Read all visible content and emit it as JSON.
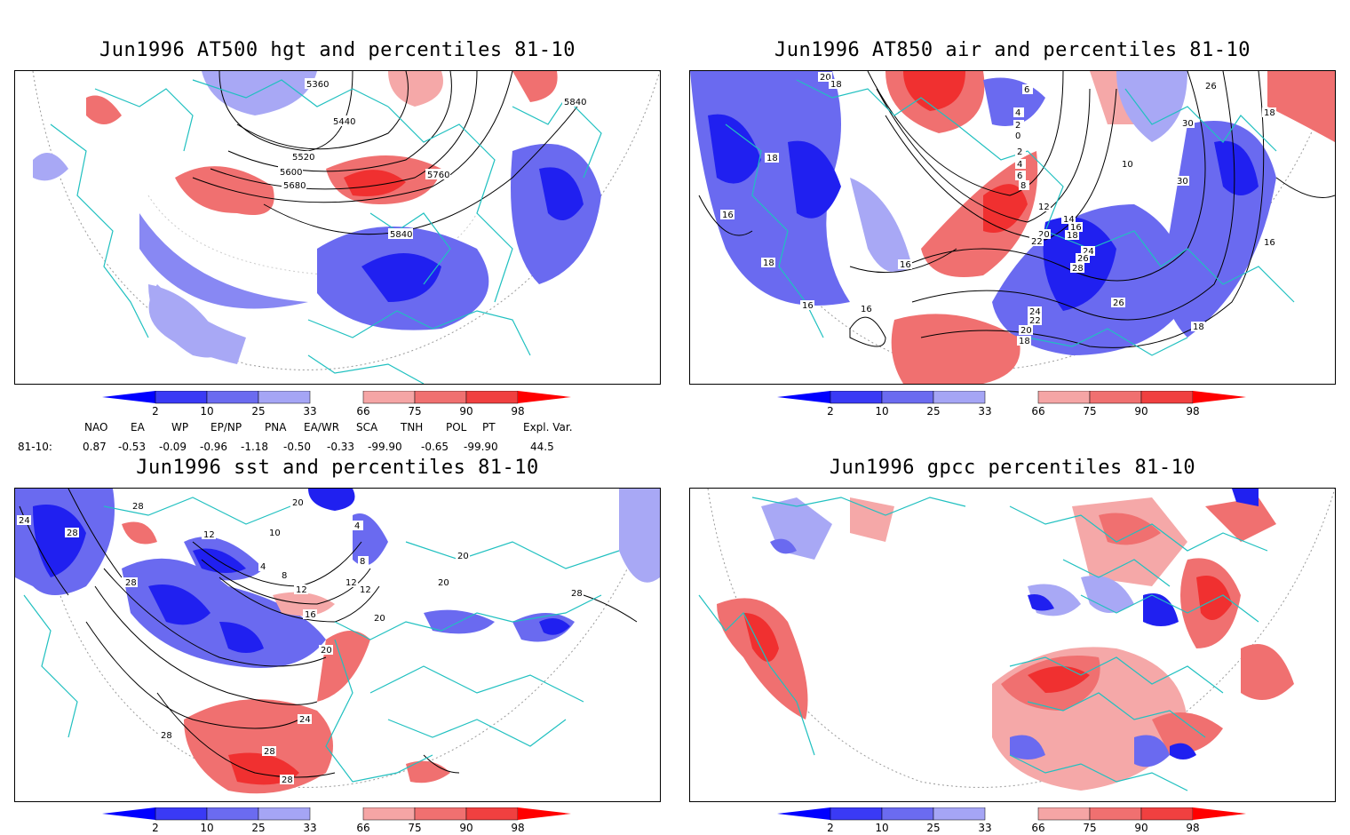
{
  "panels": [
    {
      "title": "Jun1996 AT500 hgt and percentiles 81-10",
      "contour_labels": [
        "5360",
        "5440",
        "5520",
        "5600",
        "5680",
        "5760",
        "5840",
        "5840"
      ]
    },
    {
      "title": "Jun1996 AT850 air and percentiles 81-10",
      "contour_labels": [
        "20",
        "18",
        "6",
        "4",
        "2",
        "0",
        "2",
        "4",
        "6",
        "8",
        "12",
        "14",
        "16",
        "18",
        "20",
        "22",
        "24",
        "26",
        "28",
        "26",
        "24",
        "22",
        "20",
        "18",
        "16",
        "16",
        "16",
        "18",
        "18",
        "16",
        "26",
        "30",
        "30",
        "10",
        "18",
        "18",
        "16"
      ]
    },
    {
      "title": "Jun1996 sst and percentiles 81-10",
      "contour_labels": [
        "24",
        "28",
        "28",
        "20",
        "10",
        "12",
        "4",
        "8",
        "12",
        "16",
        "20",
        "24",
        "28",
        "28",
        "28",
        "28",
        "20",
        "20",
        "12",
        "12",
        "4",
        "8",
        "28",
        "20"
      ]
    },
    {
      "title": "Jun1996 gpcc percentiles 81-10",
      "contour_labels": []
    }
  ],
  "colorbar": {
    "ticks": [
      "2",
      "10",
      "25",
      "33",
      "66",
      "75",
      "90",
      "98"
    ],
    "colors": [
      "#0000ff",
      "#3a3af5",
      "#6b6bf0",
      "#a5a5f5",
      "#ffffff",
      "#f5a5a5",
      "#f07070",
      "#f04040",
      "#ff0000"
    ]
  },
  "teleconnections": {
    "headers": [
      "NAO",
      "EA",
      "WP",
      "EP/NP",
      "PNA",
      "EA/WR",
      "SCA",
      "TNH",
      "POL",
      "PT",
      "Expl. Var."
    ],
    "row_label": "81-10:",
    "values": [
      "0.87",
      "-0.53",
      "-0.09",
      "-0.96",
      "-1.18",
      "-0.50",
      "-0.33",
      "-99.90",
      "-0.65",
      "-99.90",
      "44.5"
    ]
  },
  "colors": {
    "coastline": "#20c0c0",
    "blue_strong": "#2020f0",
    "blue_mid": "#6a6af0",
    "blue_light": "#a8a8f5",
    "red_light": "#f5a8a8",
    "red_mid": "#f07070",
    "red_strong": "#f03030"
  }
}
